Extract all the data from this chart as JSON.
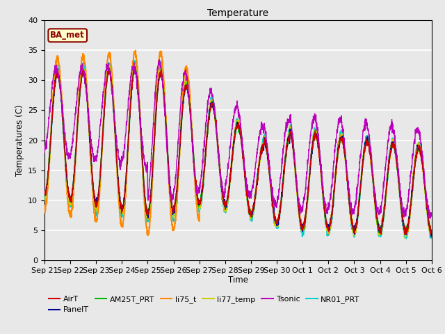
{
  "title": "Temperature",
  "ylabel": "Temperatures (C)",
  "xlabel": "Time",
  "annotation": "BA_met",
  "ylim": [
    0,
    40
  ],
  "fig_facecolor": "#e8e8e8",
  "ax_facecolor": "#e8e8e8",
  "series": {
    "AirT": {
      "color": "#cc0000",
      "lw": 1.0
    },
    "PanelT": {
      "color": "#000099",
      "lw": 1.0
    },
    "AM25T_PRT": {
      "color": "#00bb00",
      "lw": 1.0
    },
    "li75_t": {
      "color": "#ff8800",
      "lw": 1.5
    },
    "li77_temp": {
      "color": "#cccc00",
      "lw": 1.5
    },
    "Tsonic": {
      "color": "#bb00bb",
      "lw": 1.0
    },
    "NR01_PRT": {
      "color": "#00cccc",
      "lw": 1.5
    }
  },
  "x_tick_labels": [
    "Sep 21",
    "Sep 22",
    "Sep 23",
    "Sep 24",
    "Sep 25",
    "Sep 26",
    "Sep 27",
    "Sep 28",
    "Sep 29",
    "Sep 30",
    "Oct 1",
    "Oct 2",
    "Oct 3",
    "Oct 4",
    "Oct 5",
    "Oct 6"
  ],
  "n_days": 15,
  "pts_per_day": 144,
  "figsize": [
    6.4,
    4.8
  ],
  "dpi": 100
}
